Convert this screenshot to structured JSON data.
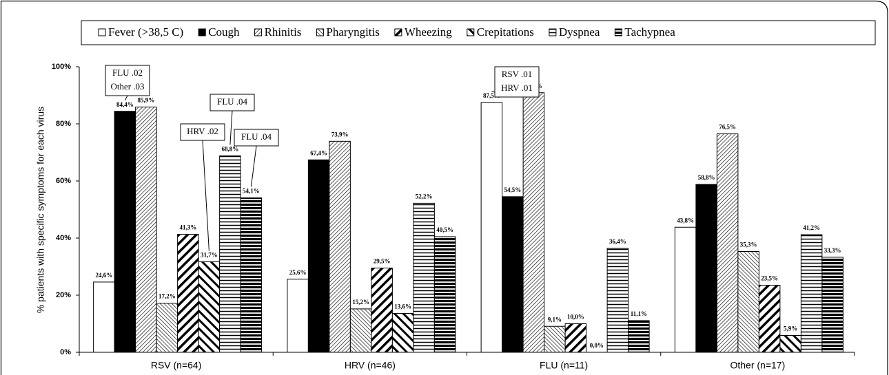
{
  "chart_data": {
    "type": "bar",
    "y_label": "% patients with specific symptoms for each virus",
    "categories": [
      "RSV (n=64)",
      "HRV (n=46)",
      "FLU (n=11)",
      "Other (n=17)"
    ],
    "series": [
      {
        "name": "Fever (>38,5 C)",
        "values": [
          24.6,
          25.6,
          87.5,
          43.8
        ],
        "value_labels": [
          "24,6%",
          "25,6%",
          "87,5%",
          "43,8%"
        ]
      },
      {
        "name": "Cough",
        "values": [
          84.4,
          67.4,
          54.5,
          58.8
        ],
        "value_labels": [
          "84,4%",
          "67,4%",
          "54,5%",
          "58,8%"
        ]
      },
      {
        "name": "Rhinitis",
        "values": [
          85.9,
          73.9,
          90.9,
          76.5
        ],
        "value_labels": [
          "85,9%",
          "73,9%",
          "90,9%",
          "76,5%"
        ]
      },
      {
        "name": "Pharyngitis",
        "values": [
          17.2,
          15.2,
          9.1,
          35.3
        ],
        "value_labels": [
          "17,2%",
          "15,2%",
          "9,1%",
          "35,3%"
        ]
      },
      {
        "name": "Wheezing",
        "values": [
          41.3,
          29.5,
          10.0,
          23.5
        ],
        "value_labels": [
          "41,3%",
          "29,5%",
          "10,0%",
          "23,5%"
        ]
      },
      {
        "name": "Crepitations",
        "values": [
          31.7,
          13.6,
          0.0,
          5.9
        ],
        "value_labels": [
          "31,7%",
          "13,6%",
          "0,0%",
          "5,9%"
        ]
      },
      {
        "name": "Dyspnea",
        "values": [
          68.8,
          52.2,
          36.4,
          41.2
        ],
        "value_labels": [
          "68,8%",
          "52,2%",
          "36,4%",
          "41,2%"
        ]
      },
      {
        "name": "Tachypnea",
        "values": [
          54.1,
          40.5,
          11.1,
          33.3
        ],
        "value_labels": [
          "54,1%",
          "40,5%",
          "11,1%",
          "33,3%"
        ]
      }
    ],
    "ylim": [
      0,
      100
    ],
    "yticks": [
      {
        "value": 0,
        "label": "0%"
      },
      {
        "value": 20,
        "label": "20%"
      },
      {
        "value": 40,
        "label": "40%"
      },
      {
        "value": 60,
        "label": "60%"
      },
      {
        "value": 80,
        "label": "80%"
      },
      {
        "value": 100,
        "label": "100%"
      }
    ],
    "annotations": [
      {
        "lines": [
          "FLU .02",
          "Other .03"
        ]
      },
      {
        "lines": [
          "HRV .02"
        ]
      },
      {
        "lines": [
          "FLU .04"
        ]
      },
      {
        "lines": [
          "FLU .04"
        ]
      },
      {
        "lines": [
          "RSV .01",
          "HRV .01"
        ]
      }
    ]
  }
}
